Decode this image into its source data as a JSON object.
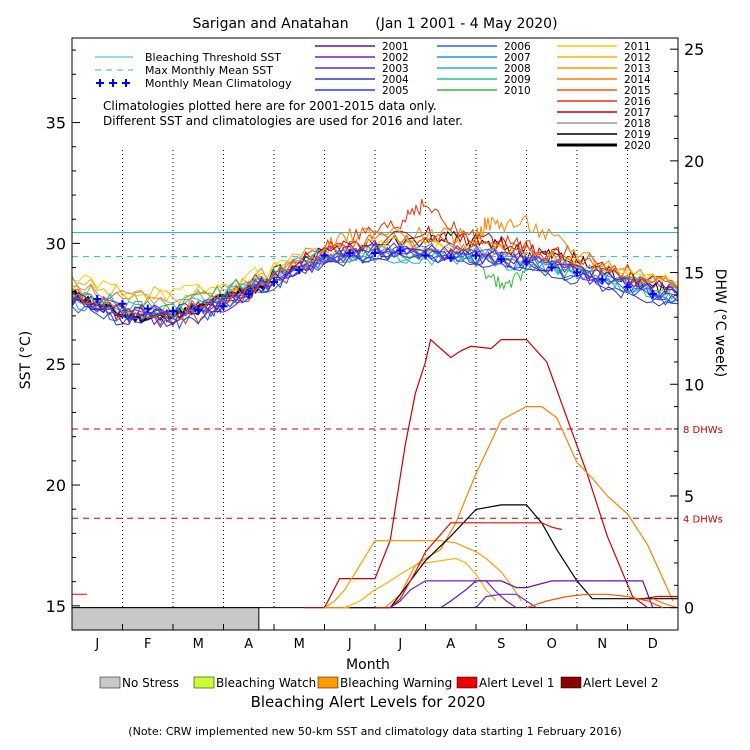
{
  "chart_data": {
    "type": "line",
    "title": "Sarigan and Anatahan      (Jan 1 2001 - 4 May 2020)",
    "xlabel": "Month",
    "ylabel": "SST (°C)",
    "y2label": "DHW (°C week)",
    "months": [
      "J",
      "F",
      "M",
      "A",
      "M",
      "J",
      "J",
      "A",
      "S",
      "O",
      "N",
      "D"
    ],
    "ylim": [
      14,
      38.5
    ],
    "y2lim": [
      -1,
      25.5
    ],
    "yticks": [
      15,
      20,
      25,
      30,
      35
    ],
    "y2ticks": [
      0,
      5,
      10,
      15,
      20,
      25
    ],
    "reference_lines": {
      "bleaching_threshold_sst": 30.45,
      "max_monthly_mean_sst": 29.45,
      "dhw_4_label": "4 DHWs",
      "dhw_8_label": "8 DHWs",
      "dhw_4": 4,
      "dhw_8": 8
    },
    "legend_refs": [
      {
        "label": "Bleaching Threshold SST",
        "color": "#22bbdd"
      },
      {
        "label": "Max Monthly Mean SST",
        "color": "#22bbdd"
      },
      {
        "label": "Monthly Mean Climatology",
        "color": "#0000ff"
      }
    ],
    "legend_years": [
      {
        "year": "2001",
        "color": "#6a0dad"
      },
      {
        "year": "2002",
        "color": "#7a1fc7"
      },
      {
        "year": "2003",
        "color": "#5a2ee0"
      },
      {
        "year": "2004",
        "color": "#3333cc"
      },
      {
        "year": "2005",
        "color": "#2040ff"
      },
      {
        "year": "2006",
        "color": "#1a66ff"
      },
      {
        "year": "2007",
        "color": "#1f8fff"
      },
      {
        "year": "2008",
        "color": "#20b0e0"
      },
      {
        "year": "2009",
        "color": "#20c0a0"
      },
      {
        "year": "2010",
        "color": "#33bb33"
      },
      {
        "year": "2011",
        "color": "#ffcc00"
      },
      {
        "year": "2012",
        "color": "#ffb000"
      },
      {
        "year": "2013",
        "color": "#ff9a00"
      },
      {
        "year": "2014",
        "color": "#ff8000"
      },
      {
        "year": "2015",
        "color": "#ff5500"
      },
      {
        "year": "2016",
        "color": "#ee3300"
      },
      {
        "year": "2017",
        "color": "#cc0000"
      },
      {
        "year": "2018",
        "color": "#999999"
      },
      {
        "year": "2019",
        "color": "#000000"
      },
      {
        "year": "2020",
        "color": "#000000"
      }
    ],
    "notes": [
      "Climatologies plotted here are for 2001-2015 data only.",
      "Different SST and climatologies are used for 2016 and later."
    ],
    "climatology": {
      "x": [
        0.5,
        1.0,
        1.5,
        2.0,
        2.5,
        3.0,
        3.5,
        4.0,
        4.5,
        5.0,
        5.5,
        6.0,
        6.5,
        7.0,
        7.5,
        8.0,
        8.5,
        9.0,
        9.5,
        10.0,
        10.5,
        11.0,
        11.5
      ],
      "y": [
        27.7,
        27.5,
        27.3,
        27.2,
        27.25,
        27.4,
        27.9,
        28.4,
        28.9,
        29.5,
        29.6,
        29.6,
        29.7,
        29.5,
        29.4,
        29.5,
        29.35,
        29.25,
        29.0,
        28.8,
        28.5,
        28.2,
        27.9
      ]
    },
    "sst_series": [
      {
        "color": "#000000",
        "width": 3,
        "x": [
          0,
          0.5,
          1,
          1.5,
          2,
          2.5,
          3,
          3.3,
          3.6,
          3.9
        ],
        "y": [
          27.9,
          27.5,
          27.0,
          26.9,
          27.1,
          27.3,
          27.8,
          28.0,
          28.1,
          28.4
        ]
      },
      {
        "color": "#000000",
        "width": 1,
        "x": [
          0,
          1,
          2,
          3,
          4,
          5,
          6,
          7,
          7.5,
          8,
          8.5,
          9,
          9.5,
          10,
          10.5,
          11,
          11.5,
          12
        ],
        "y": [
          27.8,
          27.2,
          27.0,
          27.7,
          28.8,
          29.6,
          30.0,
          30.2,
          30.3,
          30.1,
          29.9,
          29.6,
          29.5,
          29.3,
          28.9,
          28.6,
          28.3,
          28.0
        ]
      },
      {
        "color": "#ee3300",
        "width": 1,
        "x": [
          0,
          1,
          2,
          3,
          4,
          5,
          5.5,
          6,
          6.5,
          6.7,
          7,
          7.5,
          8,
          8.5,
          9,
          9.5,
          10,
          11,
          12
        ],
        "y": [
          28.0,
          27.2,
          26.8,
          27.3,
          28.5,
          29.8,
          30.2,
          30.4,
          30.7,
          31.4,
          31.6,
          30.6,
          30.2,
          30.0,
          29.9,
          29.8,
          29.4,
          28.8,
          28.2
        ]
      },
      {
        "color": "#cc0000",
        "width": 1,
        "x": [
          0,
          1,
          2,
          3,
          4,
          5,
          6,
          7,
          7.5,
          8,
          8.5,
          9,
          9.5,
          10,
          11,
          12
        ],
        "y": [
          27.7,
          27.1,
          26.9,
          27.6,
          28.8,
          29.7,
          30.1,
          30.4,
          30.2,
          30.2,
          30.0,
          29.8,
          29.5,
          29.2,
          28.7,
          28.1
        ]
      },
      {
        "color": "#ff8000",
        "width": 1,
        "x": [
          0,
          1,
          2,
          3,
          4,
          5,
          5.5,
          6,
          7,
          7.5,
          8,
          8.2,
          8.5,
          9,
          9.5,
          10,
          11,
          12
        ],
        "y": [
          28.2,
          27.6,
          27.4,
          27.9,
          28.9,
          29.8,
          30.3,
          30.5,
          30.3,
          30.3,
          30.3,
          30.8,
          30.8,
          30.8,
          30.2,
          29.6,
          28.9,
          28.3
        ]
      },
      {
        "color": "#ffb000",
        "width": 1,
        "x": [
          0,
          1,
          2,
          3,
          4,
          5,
          6,
          7,
          8,
          9,
          10,
          11,
          12
        ],
        "y": [
          28.4,
          28.0,
          27.8,
          28.1,
          29.0,
          29.6,
          29.9,
          30.0,
          29.8,
          29.6,
          29.2,
          28.7,
          28.3
        ]
      },
      {
        "color": "#ffcc00",
        "width": 1,
        "x": [
          0,
          1,
          2,
          3,
          4,
          5,
          6,
          7,
          8,
          9,
          10,
          11,
          12
        ],
        "y": [
          28.5,
          28.1,
          27.9,
          28.2,
          29.0,
          29.5,
          29.8,
          29.8,
          29.7,
          29.5,
          29.1,
          28.6,
          28.4
        ]
      },
      {
        "color": "#999999",
        "width": 1,
        "x": [
          0,
          1,
          2,
          3,
          4,
          5,
          6,
          7,
          8,
          9,
          10,
          11,
          12
        ],
        "y": [
          28.3,
          27.8,
          27.7,
          28.0,
          28.8,
          29.4,
          29.7,
          29.8,
          29.6,
          29.3,
          28.9,
          28.5,
          28.2
        ]
      },
      {
        "color": "#33bb33",
        "width": 1,
        "x": [
          0,
          1,
          2,
          3,
          4,
          5,
          6,
          7,
          8,
          8.4,
          8.7,
          9,
          10,
          11,
          12
        ],
        "y": [
          27.9,
          27.4,
          27.4,
          28.0,
          28.9,
          29.5,
          29.7,
          29.6,
          29.4,
          28.3,
          28.3,
          29.1,
          28.9,
          28.4,
          28.0
        ]
      },
      {
        "color": "#20c0a0",
        "width": 1,
        "x": [
          0,
          1,
          2,
          3,
          4,
          5,
          6,
          7,
          8,
          9,
          10,
          11,
          12
        ],
        "y": [
          27.8,
          27.3,
          27.2,
          27.7,
          28.7,
          29.4,
          29.5,
          29.4,
          29.3,
          29.1,
          28.7,
          28.3,
          27.9
        ]
      },
      {
        "color": "#20b0e0",
        "width": 1,
        "x": [
          0,
          1,
          2,
          3,
          4,
          5,
          6,
          7,
          8,
          9,
          10,
          11,
          12
        ],
        "y": [
          27.9,
          27.5,
          27.3,
          27.8,
          28.8,
          29.5,
          29.6,
          29.5,
          29.4,
          29.2,
          28.8,
          28.4,
          28.0
        ]
      },
      {
        "color": "#1f8fff",
        "width": 1,
        "x": [
          0,
          1,
          2,
          3,
          4,
          5,
          6,
          7,
          8,
          9,
          10,
          11,
          12
        ],
        "y": [
          27.6,
          27.2,
          27.0,
          27.5,
          28.5,
          29.3,
          29.6,
          29.8,
          29.6,
          29.3,
          28.9,
          28.4,
          27.8
        ]
      },
      {
        "color": "#1a66ff",
        "width": 1,
        "x": [
          0,
          1,
          2,
          3,
          4,
          5,
          6,
          7,
          8,
          9,
          10,
          11,
          12
        ],
        "y": [
          27.5,
          27.0,
          26.8,
          27.4,
          28.4,
          29.4,
          29.7,
          29.6,
          29.5,
          29.2,
          28.8,
          28.2,
          27.7
        ]
      },
      {
        "color": "#2040ff",
        "width": 1,
        "x": [
          0,
          1,
          2,
          2.5,
          3,
          4,
          5,
          6,
          7,
          8,
          9,
          10,
          11,
          12
        ],
        "y": [
          27.4,
          26.9,
          26.8,
          26.9,
          27.5,
          28.5,
          29.3,
          29.6,
          29.5,
          29.4,
          29.1,
          28.7,
          28.1,
          27.6
        ]
      },
      {
        "color": "#3333cc",
        "width": 1,
        "x": [
          0,
          1,
          2,
          3,
          4,
          5,
          6,
          7,
          8,
          9,
          10,
          11,
          12
        ],
        "y": [
          27.6,
          27.1,
          27.0,
          27.5,
          28.4,
          29.2,
          29.5,
          29.4,
          29.3,
          29.0,
          28.6,
          28.0,
          27.5
        ]
      },
      {
        "color": "#5a2ee0",
        "width": 1,
        "x": [
          0,
          1,
          2,
          3,
          4,
          5,
          6,
          7,
          8,
          9,
          10,
          11,
          12
        ],
        "y": [
          27.7,
          27.3,
          27.1,
          27.6,
          28.5,
          29.3,
          29.6,
          29.5,
          29.4,
          29.2,
          28.8,
          28.3,
          27.8
        ]
      },
      {
        "color": "#7a1fc7",
        "width": 1,
        "x": [
          0,
          1,
          2,
          3,
          4,
          5,
          6,
          7,
          8,
          9,
          10,
          11,
          12
        ],
        "y": [
          27.8,
          27.2,
          27.0,
          27.6,
          28.6,
          29.4,
          29.8,
          29.7,
          29.6,
          29.3,
          28.9,
          28.4,
          27.9
        ]
      },
      {
        "color": "#6a0dad",
        "width": 1,
        "x": [
          0,
          1,
          2,
          3,
          4,
          5,
          6,
          7,
          8,
          9,
          10,
          11,
          12
        ],
        "y": [
          27.6,
          27.0,
          26.9,
          27.5,
          28.6,
          29.5,
          29.8,
          29.6,
          29.5,
          29.3,
          29.0,
          28.5,
          27.9
        ]
      },
      {
        "color": "#ff5500",
        "width": 1,
        "x": [
          0,
          1,
          2,
          3,
          4,
          5,
          6,
          7,
          8,
          9,
          10,
          11,
          12
        ],
        "y": [
          27.9,
          27.3,
          27.1,
          27.7,
          28.7,
          29.6,
          30.1,
          30.2,
          29.9,
          29.7,
          29.2,
          28.7,
          28.1
        ]
      }
    ],
    "dhw_series": [
      {
        "color": "#cc0000",
        "x": [
          4.6,
          4.9,
          5.0,
          5.3,
          5.7,
          6.0,
          6.3,
          6.6,
          6.8,
          7.0,
          7.1,
          7.3,
          7.5,
          7.7,
          7.9,
          8.3,
          8.5,
          8.7,
          9.0,
          9.4,
          9.8,
          10.2,
          10.6,
          11.1,
          11.4
        ],
        "y": [
          0,
          0,
          0,
          1.3,
          1.3,
          1.3,
          3.0,
          7.3,
          9.6,
          11.0,
          12.0,
          11.6,
          11.2,
          11.5,
          11.7,
          11.6,
          12.0,
          12.0,
          12.0,
          11.0,
          8.5,
          6.0,
          3.2,
          0.5,
          0
        ]
      },
      {
        "color": "#ff8000",
        "x": [
          5.0,
          5.4,
          5.8,
          6.2,
          6.5,
          6.8,
          7.0,
          7.3,
          7.6,
          8.0,
          8.5,
          9.0,
          9.3,
          9.6,
          10.0,
          10.3,
          10.6,
          11.0,
          11.4,
          11.9
        ],
        "y": [
          0,
          0,
          0,
          0,
          0.6,
          1.9,
          2.2,
          2.6,
          3.8,
          6.0,
          8.4,
          9.0,
          9.0,
          8.5,
          6.5,
          5.8,
          5.0,
          4.2,
          2.8,
          0.3
        ]
      },
      {
        "color": "#ff9a00",
        "x": [
          5.0,
          5.2,
          5.4,
          5.7,
          6.0,
          6.2,
          6.4,
          6.7,
          7.0,
          7.3,
          7.6,
          8.0,
          8.2,
          8.5,
          8.7,
          8.9
        ],
        "y": [
          0,
          0.3,
          0.8,
          1.9,
          3.0,
          3.0,
          3.0,
          3.0,
          3.0,
          3.0,
          2.9,
          2.5,
          2.2,
          1.6,
          1.0,
          0.3
        ]
      },
      {
        "color": "#ffb000",
        "x": [
          5.4,
          5.7,
          6.0,
          6.3,
          6.5,
          6.8,
          7.0,
          7.3,
          7.6,
          7.8,
          8.0,
          8.2,
          8.4
        ],
        "y": [
          0,
          0.3,
          0.8,
          1.2,
          1.5,
          1.9,
          2.0,
          2.1,
          2.2,
          2.0,
          1.5,
          0.8,
          0.3
        ]
      },
      {
        "color": "#000000",
        "x": [
          5.5,
          5.8,
          6.0,
          6.3,
          6.5,
          7.0,
          7.5,
          8.0,
          8.5,
          8.8,
          9.0,
          9.3,
          9.6,
          10.0,
          10.3,
          11.0,
          11.5,
          12.0
        ],
        "y": [
          0,
          0,
          0,
          0,
          0.6,
          2.1,
          3.2,
          4.4,
          4.6,
          4.6,
          4.6,
          3.8,
          2.6,
          1.2,
          0.4,
          0.4,
          0.4,
          0.4
        ]
      },
      {
        "color": "#dd1100",
        "x": [
          6.0,
          6.3,
          6.5,
          6.8,
          7.0,
          7.5,
          8.0,
          8.5,
          9.0,
          9.3,
          9.5,
          9.7
        ],
        "y": [
          0,
          0,
          0.4,
          1.6,
          2.5,
          3.8,
          3.8,
          3.8,
          3.8,
          3.8,
          3.6,
          3.5
        ]
      },
      {
        "color": "#7a1fc7",
        "x": [
          6.3,
          6.5,
          6.7,
          7.0,
          7.3,
          7.5,
          7.8,
          8.0,
          8.2,
          8.4,
          8.6,
          8.8
        ],
        "y": [
          0,
          0.3,
          0.8,
          1.2,
          1.2,
          1.2,
          1.2,
          1.2,
          1.2,
          0.7,
          0.3,
          0
        ]
      },
      {
        "color": "#6a0dad",
        "x": [
          7.3,
          7.5,
          7.8,
          8.0,
          8.3,
          8.5,
          8.8,
          9.0,
          9.5,
          10.0,
          10.5,
          11.0,
          11.3,
          11.5
        ],
        "y": [
          0,
          0.3,
          0.8,
          1.2,
          1.2,
          1.2,
          0.9,
          0.9,
          1.2,
          1.2,
          1.2,
          1.2,
          1.2,
          0
        ]
      },
      {
        "color": "#5a2ee0",
        "x": [
          8.0,
          8.2,
          8.5,
          8.8,
          9.0,
          9.2
        ],
        "y": [
          0,
          0.5,
          0.6,
          0.6,
          0.3,
          0
        ]
      },
      {
        "color": "#ff5500",
        "x": [
          9.0,
          9.4,
          9.8,
          10.2,
          10.6,
          11.0,
          11.4,
          11.7
        ],
        "y": [
          0,
          0.3,
          0.5,
          0.6,
          0.6,
          0.5,
          0.3,
          0
        ]
      },
      {
        "color": "#cc0000",
        "x": [
          11.3,
          11.6,
          11.9,
          12.0
        ],
        "y": [
          0.4,
          0.5,
          0.5,
          0.5
        ]
      },
      {
        "color": "#ff8000",
        "x": [
          11.5,
          11.7,
          12.0
        ],
        "y": [
          0.4,
          0.2,
          0
        ]
      },
      {
        "color": "#ee3300",
        "x": [
          0,
          0.3
        ],
        "y": [
          0.6,
          0.6
        ]
      }
    ],
    "alert_bar": {
      "no_stress_until_month": 3.7
    },
    "alert_legend": [
      {
        "label": "No Stress",
        "color": "#c8c8c8"
      },
      {
        "label": "Bleaching Watch",
        "color": "#ccff33"
      },
      {
        "label": "Bleaching Warning",
        "color": "#ff9900"
      },
      {
        "label": "Alert Level 1",
        "color": "#ee0000"
      },
      {
        "label": "Alert Level 2",
        "color": "#880000"
      }
    ],
    "alert_title": "Bleaching Alert Levels for 2020",
    "footnote": "(Note: CRW implemented new 50-km SST and climatology data starting 1 February 2016)"
  }
}
